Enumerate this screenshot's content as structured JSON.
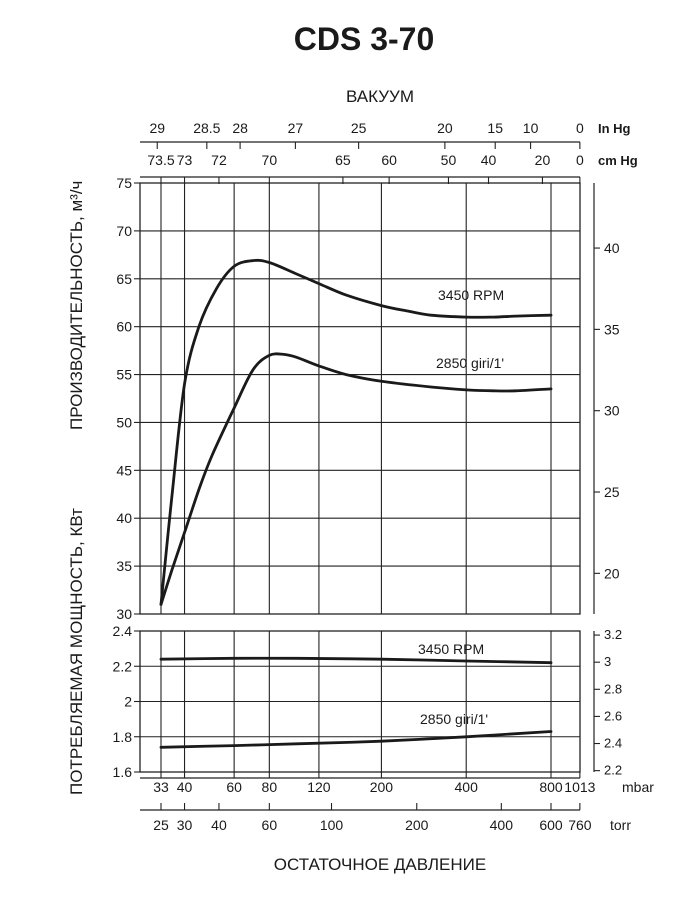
{
  "chart_data": {
    "title": "CDS 3-70",
    "top_axis_title": "ВАКУУМ",
    "bottom_axis_title": "ОСТАТОЧНОЕ ДАВЛЕНИЕ",
    "left_axis_title_top": "ПРОИЗВОДИТЕЛЬНОСТЬ, м³/ч",
    "left_axis_title_bottom": "ПОТРЕБЛЯЕМАЯ МОЩНОСТЬ, КВт",
    "x_scale": "log",
    "top_in_hg": {
      "unit": "In  Hg",
      "ticks": [
        {
          "label": "29",
          "mbar": 32
        },
        {
          "label": "28.5",
          "mbar": 48
        },
        {
          "label": "28",
          "mbar": 63
        },
        {
          "label": "27",
          "mbar": 99
        },
        {
          "label": "25",
          "mbar": 166
        },
        {
          "label": "20",
          "mbar": 336
        },
        {
          "label": "15",
          "mbar": 507
        },
        {
          "label": "10",
          "mbar": 677
        },
        {
          "label": "0",
          "mbar": 1013
        }
      ]
    },
    "top_cm_hg": {
      "unit": "cm  Hg",
      "ticks": [
        {
          "label": "73.5",
          "mbar": 33
        },
        {
          "label": "73",
          "mbar": 40
        },
        {
          "label": "72",
          "mbar": 53
        },
        {
          "label": "70",
          "mbar": 80
        },
        {
          "label": "65",
          "mbar": 146
        },
        {
          "label": "60",
          "mbar": 213
        },
        {
          "label": "50",
          "mbar": 346
        },
        {
          "label": "40",
          "mbar": 480
        },
        {
          "label": "20",
          "mbar": 746
        },
        {
          "label": "0",
          "mbar": 1013
        }
      ]
    },
    "bottom_mbar": {
      "unit": "mbar",
      "ticks": [
        {
          "label": "33",
          "mbar": 33
        },
        {
          "label": "40",
          "mbar": 40
        },
        {
          "label": "60",
          "mbar": 60
        },
        {
          "label": "80",
          "mbar": 80
        },
        {
          "label": "120",
          "mbar": 120
        },
        {
          "label": "200",
          "mbar": 200
        },
        {
          "label": "400",
          "mbar": 400
        },
        {
          "label": "800",
          "mbar": 800
        },
        {
          "label": "1013",
          "mbar": 1013
        }
      ]
    },
    "bottom_torr": {
      "unit": "torr",
      "ticks": [
        {
          "label": "25",
          "mbar": 33
        },
        {
          "label": "30",
          "mbar": 40
        },
        {
          "label": "40",
          "mbar": 53
        },
        {
          "label": "60",
          "mbar": 80
        },
        {
          "label": "100",
          "mbar": 133
        },
        {
          "label": "200",
          "mbar": 267
        },
        {
          "label": "400",
          "mbar": 533
        },
        {
          "label": "600",
          "mbar": 800
        },
        {
          "label": "760",
          "mbar": 1013
        }
      ]
    },
    "capacity_panel": {
      "y_unit_label": "м³/ч",
      "ylim": [
        30,
        75
      ],
      "yticks": [
        "30",
        "35",
        "40",
        "45",
        "50",
        "55",
        "60",
        "65",
        "70",
        "75"
      ],
      "right_axis": {
        "ticks": [
          "20",
          "25",
          "30",
          "35",
          "40"
        ],
        "values": [
          20,
          25,
          30,
          35,
          40
        ],
        "ylim": [
          17.5,
          44
        ]
      },
      "series": [
        {
          "name": "3450  RPM",
          "x_mbar": [
            33,
            36,
            40,
            45,
            52,
            60,
            70,
            80,
            100,
            120,
            150,
            200,
            250,
            300,
            400,
            500,
            600,
            800
          ],
          "y": [
            31,
            42,
            54,
            60,
            64,
            66.3,
            66.9,
            66.7,
            65.5,
            64.5,
            63.3,
            62.2,
            61.6,
            61.2,
            61.0,
            61.0,
            61.1,
            61.2
          ]
        },
        {
          "name": "2850  giri/1'",
          "x_mbar": [
            33,
            36,
            40,
            45,
            50,
            60,
            70,
            80,
            90,
            100,
            120,
            150,
            200,
            300,
            400,
            500,
            600,
            800
          ],
          "y": [
            31,
            34.5,
            38.5,
            43,
            46.5,
            51.5,
            55.5,
            57,
            57.1,
            56.8,
            55.9,
            55,
            54.3,
            53.7,
            53.4,
            53.3,
            53.3,
            53.5
          ]
        }
      ]
    },
    "power_panel": {
      "ylim": [
        1.6,
        2.4
      ],
      "yticks": [
        "1.6",
        "1.8",
        "2",
        "2.2",
        "2.4"
      ],
      "right_axis": {
        "ticks": [
          "2.2",
          "2.4",
          "2.6",
          "2.8",
          "3",
          "3.2"
        ],
        "values": [
          2.2,
          2.4,
          2.6,
          2.8,
          3.0,
          3.2
        ],
        "ylim": [
          2.19,
          3.23
        ]
      },
      "series": [
        {
          "name": "3450  RPM",
          "x_mbar": [
            33,
            60,
            100,
            200,
            400,
            800
          ],
          "y": [
            2.24,
            2.245,
            2.245,
            2.24,
            2.23,
            2.22
          ]
        },
        {
          "name": "2850  giri/1'",
          "x_mbar": [
            33,
            60,
            100,
            200,
            400,
            800
          ],
          "y": [
            1.74,
            1.75,
            1.76,
            1.775,
            1.8,
            1.83
          ]
        }
      ]
    },
    "grid": true
  }
}
